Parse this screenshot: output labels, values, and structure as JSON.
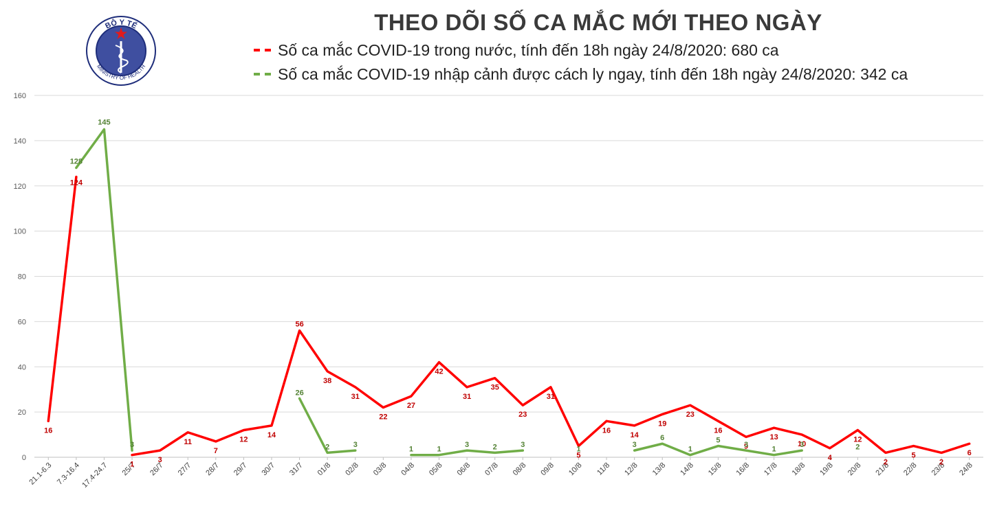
{
  "logo": {
    "top_text": "BỘ Y TẾ",
    "bottom_text": "MINISTRY OF HEALTH",
    "colors": {
      "ring": "#1e2d7a",
      "inner": "#3f4fa0",
      "star": "#e21b1b"
    }
  },
  "chart_data": {
    "type": "line",
    "title": "THEO DÕI SỐ CA MẮC MỚI THEO NGÀY",
    "xlabel": "",
    "ylabel": "",
    "ylim": [
      0,
      160
    ],
    "yticks": [
      0,
      20,
      40,
      60,
      80,
      100,
      120,
      140,
      160
    ],
    "grid": true,
    "legend_position": "top",
    "categories": [
      "21.1-6.3",
      "7.3-16.4",
      "17.4-24.7",
      "25/7",
      "26/7",
      "27/7",
      "28/7",
      "29/7",
      "30/7",
      "31/7",
      "01/8",
      "02/8",
      "03/8",
      "04/8",
      "05/8",
      "06/8",
      "07/8",
      "08/8",
      "09/8",
      "10/8",
      "11/8",
      "12/8",
      "13/8",
      "14/8",
      "15/8",
      "16/8",
      "17/8",
      "18/8",
      "19/8",
      "20/8",
      "21/8",
      "22/8",
      "23/8",
      "24/8"
    ],
    "series": [
      {
        "name": "Số ca mắc COVID-19 trong nước, tính đến 18h ngày 24/8/2020: 680 ca",
        "color": "#ff0000",
        "values": [
          16,
          124,
          null,
          1,
          3,
          11,
          7,
          12,
          14,
          56,
          38,
          31,
          22,
          27,
          42,
          31,
          35,
          23,
          31,
          5,
          16,
          14,
          19,
          23,
          16,
          9,
          13,
          10,
          4,
          12,
          2,
          5,
          2,
          6
        ]
      },
      {
        "name": "Số ca mắc COVID-19 nhập cảnh được cách ly ngay, tính đến 18h ngày 24/8/2020: 342 ca",
        "color": "#70ad47",
        "values": [
          null,
          128,
          145,
          3,
          null,
          null,
          null,
          null,
          null,
          26,
          2,
          3,
          null,
          1,
          1,
          3,
          2,
          3,
          null,
          1,
          null,
          3,
          6,
          1,
          5,
          3,
          1,
          3,
          null,
          2,
          null,
          null,
          null,
          null
        ]
      }
    ]
  }
}
